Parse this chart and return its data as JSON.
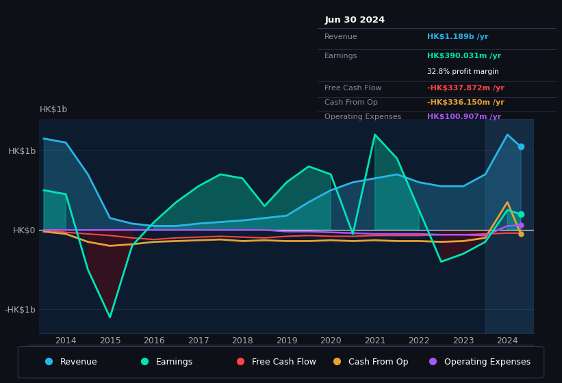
{
  "background_color": "#0d1117",
  "plot_bg_color": "#0d1b2e",
  "grid_color": "#1e3050",
  "zero_line_color": "#ffffff",
  "ylabel_hk1b": "HK$1b",
  "ylabel_neg_hk1b": "-HK$1b",
  "ylabel_hk0": "HK$0",
  "years": [
    2013.5,
    2014,
    2014.5,
    2015,
    2015.5,
    2016,
    2016.5,
    2017,
    2017.5,
    2018,
    2018.5,
    2019,
    2019.5,
    2020,
    2020.5,
    2021,
    2021.5,
    2022,
    2022.5,
    2023,
    2023.5,
    2024,
    2024.3
  ],
  "revenue": [
    1.15,
    1.1,
    0.7,
    0.15,
    0.08,
    0.05,
    0.05,
    0.08,
    0.1,
    0.12,
    0.15,
    0.18,
    0.35,
    0.5,
    0.6,
    0.65,
    0.7,
    0.6,
    0.55,
    0.55,
    0.7,
    1.2,
    1.05
  ],
  "earnings": [
    0.5,
    0.45,
    -0.5,
    -1.1,
    -0.2,
    0.1,
    0.35,
    0.55,
    0.7,
    0.65,
    0.3,
    0.6,
    0.8,
    0.7,
    -0.05,
    1.2,
    0.9,
    0.25,
    -0.4,
    -0.3,
    -0.15,
    0.25,
    0.2
  ],
  "free_cash_flow": [
    0.0,
    -0.03,
    -0.05,
    -0.07,
    -0.1,
    -0.12,
    -0.1,
    -0.09,
    -0.08,
    -0.09,
    -0.1,
    -0.08,
    -0.07,
    -0.08,
    -0.08,
    -0.07,
    -0.07,
    -0.07,
    -0.06,
    -0.06,
    -0.05,
    -0.04,
    -0.04
  ],
  "cash_from_op": [
    -0.02,
    -0.05,
    -0.15,
    -0.2,
    -0.18,
    -0.15,
    -0.14,
    -0.13,
    -0.12,
    -0.14,
    -0.13,
    -0.14,
    -0.14,
    -0.13,
    -0.14,
    -0.13,
    -0.14,
    -0.14,
    -0.15,
    -0.14,
    -0.1,
    0.35,
    -0.05
  ],
  "operating_expenses": [
    0.0,
    0.0,
    0.0,
    0.0,
    0.0,
    0.0,
    0.0,
    0.0,
    0.0,
    0.0,
    0.0,
    -0.02,
    -0.02,
    -0.03,
    -0.04,
    -0.05,
    -0.05,
    -0.05,
    -0.06,
    -0.06,
    -0.07,
    0.05,
    0.06
  ],
  "revenue_color": "#29b5e8",
  "earnings_color": "#00e5b4",
  "free_cash_flow_color": "#ff4444",
  "cash_from_op_color": "#e8a234",
  "operating_expenses_color": "#a855f7",
  "info_box": {
    "date": "Jun 30 2024",
    "revenue_label": "Revenue",
    "revenue_value": "HK$1.189b",
    "revenue_color": "#29b5e8",
    "earnings_label": "Earnings",
    "earnings_value": "HK$390.031m",
    "earnings_color": "#00e5b4",
    "margin_text": "32.8% profit margin",
    "fcf_label": "Free Cash Flow",
    "fcf_value": "-HK$337.872m",
    "fcf_color": "#ff4444",
    "cfo_label": "Cash From Op",
    "cfo_value": "-HK$336.150m",
    "cfo_color": "#e8a234",
    "opex_label": "Operating Expenses",
    "opex_value": "HK$100.907m",
    "opex_color": "#a855f7"
  },
  "legend_items": [
    {
      "label": "Revenue",
      "color": "#29b5e8"
    },
    {
      "label": "Earnings",
      "color": "#00e5b4"
    },
    {
      "label": "Free Cash Flow",
      "color": "#ff4444"
    },
    {
      "label": "Cash From Op",
      "color": "#e8a234"
    },
    {
      "label": "Operating Expenses",
      "color": "#a855f7"
    }
  ],
  "xlim": [
    2013.4,
    2024.6
  ],
  "ylim": [
    -1.3,
    1.4
  ],
  "xtick_years": [
    2014,
    2015,
    2016,
    2017,
    2018,
    2019,
    2020,
    2021,
    2022,
    2023,
    2024
  ]
}
